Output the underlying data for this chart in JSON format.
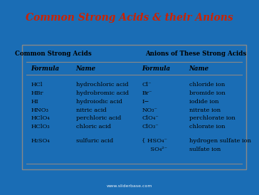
{
  "title": "Common Strong Acids & their Anions",
  "title_color": "#cc2200",
  "bg_color": "#1a6db5",
  "table_bg": "#ede9e0",
  "section1_header": "Common Strong Acids",
  "section2_header": "Anions of These Strong Acids",
  "col_headers": [
    "Formula",
    "Name",
    "Formula",
    "Name"
  ],
  "rows": [
    [
      "HCl",
      "hydrochloric acid",
      "Cl⁻",
      "chloride ion"
    ],
    [
      "HBr",
      "hydrobromic acid",
      "Br⁻",
      "bromide ion"
    ],
    [
      "HI",
      "hydroiodic acid",
      "I−",
      "iodide ion"
    ],
    [
      "HNO₃",
      "nitric acid",
      "NO₃⁻",
      "nitrate ion"
    ],
    [
      "HClO₄",
      "perchloric acid",
      "ClO₄⁻",
      "perchlorate ion"
    ],
    [
      "HClO₃",
      "chloric acid",
      "ClO₃⁻",
      "chlorate ion"
    ],
    [
      "H₂SO₄",
      "sulfuric acid",
      "",
      ""
    ]
  ],
  "last_row_anion1": "{ HSO₄⁻",
  "last_row_anion2": "  SO₄²⁻",
  "last_row_name1": "hydrogen sulfate ion",
  "last_row_name2": "sulfate ion",
  "footer": "www.sliderbase.com"
}
